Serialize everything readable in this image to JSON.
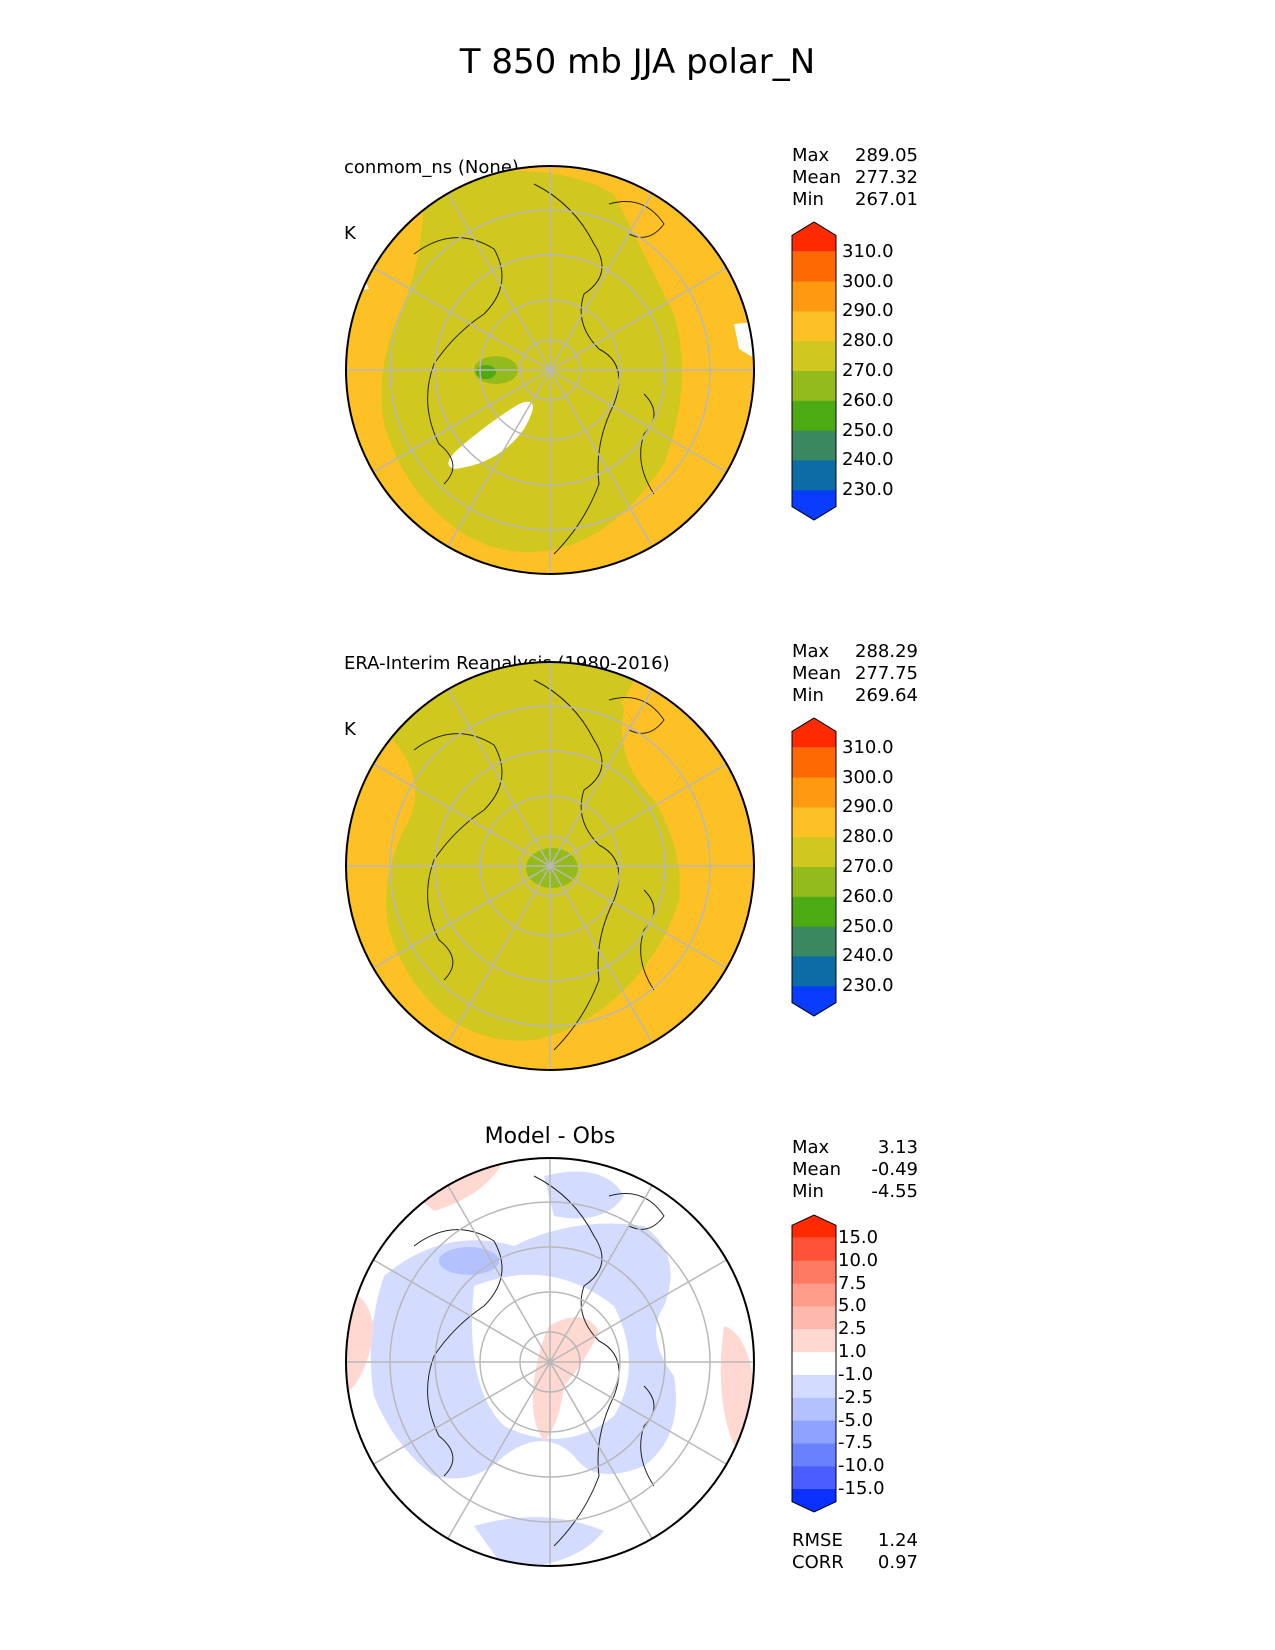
{
  "title": "T 850 mb JJA polar_N",
  "panels": [
    {
      "id": "model",
      "label_line1": "conmom_ns (None)",
      "label_line2": "K",
      "heading": "",
      "stats": [
        {
          "label": "Max",
          "value": "289.05"
        },
        {
          "label": "Mean",
          "value": "277.32"
        },
        {
          "label": "Min",
          "value": "267.01"
        }
      ],
      "colorbar": {
        "labels": [
          "310.0",
          "300.0",
          "290.0",
          "280.0",
          "270.0",
          "260.0",
          "250.0",
          "240.0",
          "230.0"
        ],
        "colors": [
          "#ff2a00",
          "#ff6a00",
          "#ff9a10",
          "#fdc025",
          "#d0c81e",
          "#93bb1b",
          "#4caa12",
          "#3a8860",
          "#0c6ca6",
          "#0a3cff"
        ]
      }
    },
    {
      "id": "obs",
      "label_line1": "ERA-Interim Reanalysis (1980-2016)",
      "label_line2": "K",
      "heading": "",
      "stats": [
        {
          "label": "Max",
          "value": "288.29"
        },
        {
          "label": "Mean",
          "value": "277.75"
        },
        {
          "label": "Min",
          "value": "269.64"
        }
      ],
      "colorbar": {
        "labels": [
          "310.0",
          "300.0",
          "290.0",
          "280.0",
          "270.0",
          "260.0",
          "250.0",
          "240.0",
          "230.0"
        ],
        "colors": [
          "#ff2a00",
          "#ff6a00",
          "#ff9a10",
          "#fdc025",
          "#d0c81e",
          "#93bb1b",
          "#4caa12",
          "#3a8860",
          "#0c6ca6",
          "#0a3cff"
        ]
      }
    },
    {
      "id": "diff",
      "label_line1": "",
      "label_line2": "",
      "heading": "Model - Obs",
      "stats": [
        {
          "label": "Max",
          "value": "3.13"
        },
        {
          "label": "Mean",
          "value": "-0.49"
        },
        {
          "label": "Min",
          "value": "-4.55"
        }
      ],
      "metrics": [
        {
          "label": "RMSE",
          "value": "1.24"
        },
        {
          "label": "CORR",
          "value": "0.97"
        }
      ],
      "colorbar": {
        "labels": [
          "15.0",
          "10.0",
          "7.5",
          "5.0",
          "2.5",
          "1.0",
          "-1.0",
          "-2.5",
          "-5.0",
          "-7.5",
          "-10.0",
          "-15.0"
        ],
        "colors": [
          "#ff2a00",
          "#ff5236",
          "#ff7a62",
          "#ff9c8a",
          "#ffb8ac",
          "#ffd8d2",
          "#ffffff",
          "#d3dcff",
          "#b3c2ff",
          "#8ea3ff",
          "#6a82ff",
          "#4a5eff",
          "#0a30ff"
        ]
      }
    }
  ]
}
